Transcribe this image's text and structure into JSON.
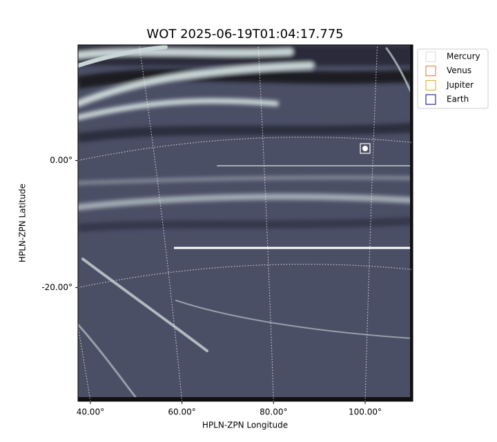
{
  "chart_data": {
    "type": "image",
    "title": "WOT 2025-06-19T01:04:17.775",
    "x_label": "HPLN-ZPN Longitude",
    "y_label": "HPLN-ZPN Latitude",
    "xlim": [
      37.3,
      110.4
    ],
    "ylim": [
      -37.9,
      18.2
    ],
    "xticks": [
      {
        "value": 40,
        "label": "40.00°"
      },
      {
        "value": 60,
        "label": "60.00°"
      },
      {
        "value": 80,
        "label": "80.00°"
      },
      {
        "value": 100,
        "label": "100.00°"
      }
    ],
    "yticks": [
      {
        "value": 0,
        "label": "0.00°"
      },
      {
        "value": -20,
        "label": "-20.00°"
      }
    ],
    "grid": true,
    "legend_position": "outside-right",
    "legend": [
      {
        "name": "Mercury",
        "color": "#d9d9d9"
      },
      {
        "name": "Venus",
        "color": "#e07030"
      },
      {
        "name": "Jupiter",
        "color": "#e0a800"
      },
      {
        "name": "Earth",
        "color": "#000080"
      }
    ]
  }
}
